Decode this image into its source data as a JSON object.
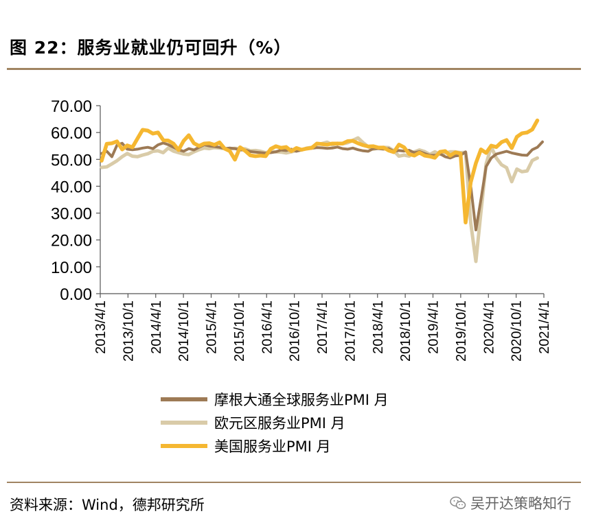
{
  "header": {
    "title": "图 22：服务业就业仍可回升（%）"
  },
  "footer": {
    "source": "资料来源：Wind，德邦研究所",
    "watermark": "吴开达策略知行"
  },
  "colors": {
    "global": "#9d7a55",
    "euro": "#d9cba8",
    "us": "#f5b731",
    "rule": "#a08462"
  },
  "chart_data": {
    "type": "line",
    "title": "服务业就业仍可回升（%）",
    "xlabel": "",
    "ylabel": "",
    "ylim": [
      0,
      70
    ],
    "yticks": [
      "0.00",
      "10.00",
      "20.00",
      "30.00",
      "40.00",
      "50.00",
      "60.00",
      "70.00"
    ],
    "xticks": [
      "2013/4/1",
      "2013/10/1",
      "2014/4/1",
      "2014/10/1",
      "2015/4/1",
      "2015/10/1",
      "2016/4/1",
      "2016/10/1",
      "2017/4/1",
      "2017/10/1",
      "2018/4/1",
      "2018/10/1",
      "2019/4/1",
      "2019/10/1",
      "2020/4/1",
      "2020/10/1",
      "2021/4/1"
    ],
    "legend_position": "bottom",
    "series": [
      {
        "name": "摩根大通全球服务业PMI 月",
        "key": "global",
        "values": [
          52.2,
          53.0,
          51.0,
          55.3,
          56.0,
          53.8,
          53.6,
          53.8,
          54.2,
          54.5,
          54.0,
          55.4,
          56.1,
          55.5,
          54.5,
          53.6,
          53.0,
          54.0,
          53.5,
          54.5,
          55.4,
          55.0,
          54.8,
          54.5,
          54.0,
          54.2,
          54.0,
          53.5,
          53.5,
          52.9,
          52.7,
          52.5,
          52.3,
          52.5,
          52.8,
          53.5,
          53.3,
          53.8,
          53.0,
          53.5,
          54.0,
          54.1,
          54.4,
          54.3,
          54.1,
          54.2,
          54.6,
          54.0,
          53.8,
          54.2,
          53.6,
          53.2,
          53.0,
          54.0,
          54.0,
          53.8,
          54.0,
          53.0,
          53.3,
          53.1,
          53.4,
          52.5,
          52.9,
          52.2,
          51.5,
          51.5,
          52.1,
          51.0,
          50.5,
          51.3,
          51.5,
          52.8,
          40.0,
          23.7,
          35.1,
          47.3,
          50.5,
          52.0,
          52.5,
          53.0,
          52.4,
          52.0,
          51.6,
          51.5,
          53.6,
          54.5,
          56.5
        ]
      },
      {
        "name": "欧元区服务业PMI 月",
        "key": "euro",
        "values": [
          47.0,
          47.2,
          48.3,
          49.5,
          51.0,
          52.2,
          51.2,
          51.0,
          51.6,
          52.1,
          53.0,
          53.2,
          52.5,
          54.2,
          53.1,
          52.5,
          52.0,
          51.8,
          52.8,
          53.6,
          54.2,
          54.0,
          54.4,
          54.2,
          54.0,
          53.9,
          54.1,
          54.0,
          53.9,
          53.2,
          53.3,
          53.0,
          52.5,
          53.0,
          52.8,
          52.7,
          52.4,
          52.8,
          53.3,
          53.5,
          54.2,
          54.5,
          55.6,
          55.9,
          56.4,
          55.4,
          56.0,
          55.8,
          56.2,
          57.1,
          58.0,
          56.2,
          54.7,
          53.8,
          54.2,
          54.5,
          54.4,
          53.2,
          51.2,
          51.6,
          51.2,
          52.8,
          53.5,
          52.9,
          51.8,
          52.8,
          51.9,
          52.4,
          52.8,
          52.8,
          52.5,
          52.6,
          26.4,
          12.0,
          30.5,
          48.3,
          54.7,
          50.5,
          48.0,
          46.9,
          41.7,
          46.4,
          45.4,
          45.7,
          49.6,
          50.5
        ]
      },
      {
        "name": "美国服务业PMI 月",
        "key": "us",
        "values": [
          49.5,
          55.8,
          56.0,
          56.7,
          53.7,
          55.2,
          54.5,
          57.8,
          61.0,
          60.7,
          59.6,
          60.0,
          57.2,
          57.0,
          55.9,
          53.5,
          56.9,
          59.0,
          56.0,
          55.0,
          55.9,
          56.0,
          55.4,
          56.3,
          54.0,
          53.1,
          49.9,
          54.5,
          53.2,
          51.5,
          51.2,
          51.4,
          51.2,
          53.9,
          54.9,
          54.3,
          54.6,
          53.1,
          54.2,
          53.6,
          54.0,
          54.3,
          55.9,
          55.7,
          55.5,
          55.9,
          55.9,
          55.9,
          56.8,
          56.9,
          56.0,
          55.3,
          54.8,
          54.9,
          54.4,
          54.4,
          53.3,
          52.7,
          55.5,
          54.5,
          52.0,
          51.4,
          52.5,
          51.4,
          51.1,
          50.6,
          52.8,
          53.1,
          51.4,
          52.6,
          52.2,
          26.5,
          41.5,
          48.6,
          53.7,
          52.4,
          55.1,
          54.6,
          56.4,
          57.2,
          54.2,
          58.4,
          59.7,
          60.0,
          61.1,
          64.5
        ]
      }
    ]
  }
}
